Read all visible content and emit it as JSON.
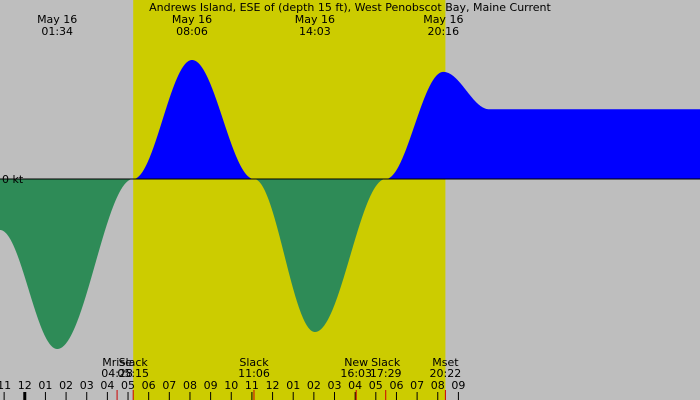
{
  "chart_data": {
    "type": "area",
    "title": "Andrews Island, ESE of (depth 15 ft), West Penobscot Bay, Maine Current",
    "unit_label": "0 kt",
    "colors": {
      "background": "#bebebe",
      "daylight": "#cccc00",
      "flood": "#0000ff",
      "ebb": "#2e8b57",
      "zero_line": "#000000",
      "tide_marker": "#cc0000",
      "moon_marker": "#cc0000"
    },
    "x_range_hours": [
      -1.2,
      32.7
    ],
    "ylim": [
      -1.0,
      1.0
    ],
    "daylight_hours": [
      [
        5.25,
        20.37
      ]
    ],
    "peaks": [
      {
        "date": "May 16",
        "time": "01:34",
        "hour": 1.57,
        "value": -1.0
      },
      {
        "date": "May 16",
        "time": "08:06",
        "hour": 8.1,
        "value": 0.7
      },
      {
        "date": "May 16",
        "time": "14:03",
        "hour": 14.05,
        "value": -0.9
      },
      {
        "date": "May 16",
        "time": "20:16",
        "hour": 20.27,
        "value": 0.63
      }
    ],
    "curve": [
      {
        "hour": -1.2,
        "value": -0.3
      },
      {
        "hour": 1.57,
        "value": -1.0
      },
      {
        "hour": 5.25,
        "value": 0.0
      },
      {
        "hour": 8.1,
        "value": 0.7
      },
      {
        "hour": 11.1,
        "value": 0.0
      },
      {
        "hour": 14.05,
        "value": -0.9
      },
      {
        "hour": 17.48,
        "value": 0.0
      },
      {
        "hour": 20.27,
        "value": 0.63
      },
      {
        "hour": 22.5,
        "value": 0.41
      }
    ],
    "events": [
      {
        "label": "Mrise",
        "time": "04:28",
        "hour": 4.47
      },
      {
        "label": "Slack",
        "time": "05:15",
        "hour": 5.25
      },
      {
        "label": "Slack",
        "time": "11:06",
        "hour": 11.1
      },
      {
        "label": "New",
        "time": "16:03",
        "hour": 16.05
      },
      {
        "label": "Slack",
        "time": "17:29",
        "hour": 17.48
      },
      {
        "label": "Mset",
        "time": "20:22",
        "hour": 20.37
      }
    ],
    "hour_ticks": [
      {
        "label": "11",
        "hour": -1
      },
      {
        "label": "12",
        "hour": 0
      },
      {
        "label": "01",
        "hour": 1
      },
      {
        "label": "02",
        "hour": 2
      },
      {
        "label": "03",
        "hour": 3
      },
      {
        "label": "04",
        "hour": 4
      },
      {
        "label": "05",
        "hour": 5
      },
      {
        "label": "06",
        "hour": 6
      },
      {
        "label": "07",
        "hour": 7
      },
      {
        "label": "08",
        "hour": 8
      },
      {
        "label": "09",
        "hour": 9
      },
      {
        "label": "10",
        "hour": 10
      },
      {
        "label": "11",
        "hour": 11
      },
      {
        "label": "12",
        "hour": 12
      },
      {
        "label": "01",
        "hour": 13
      },
      {
        "label": "02",
        "hour": 14
      },
      {
        "label": "03",
        "hour": 15
      },
      {
        "label": "04",
        "hour": 16
      },
      {
        "label": "05",
        "hour": 17
      },
      {
        "label": "06",
        "hour": 18
      },
      {
        "label": "07",
        "hour": 19
      },
      {
        "label": "08",
        "hour": 20
      },
      {
        "label": "09",
        "hour": 21
      }
    ]
  }
}
